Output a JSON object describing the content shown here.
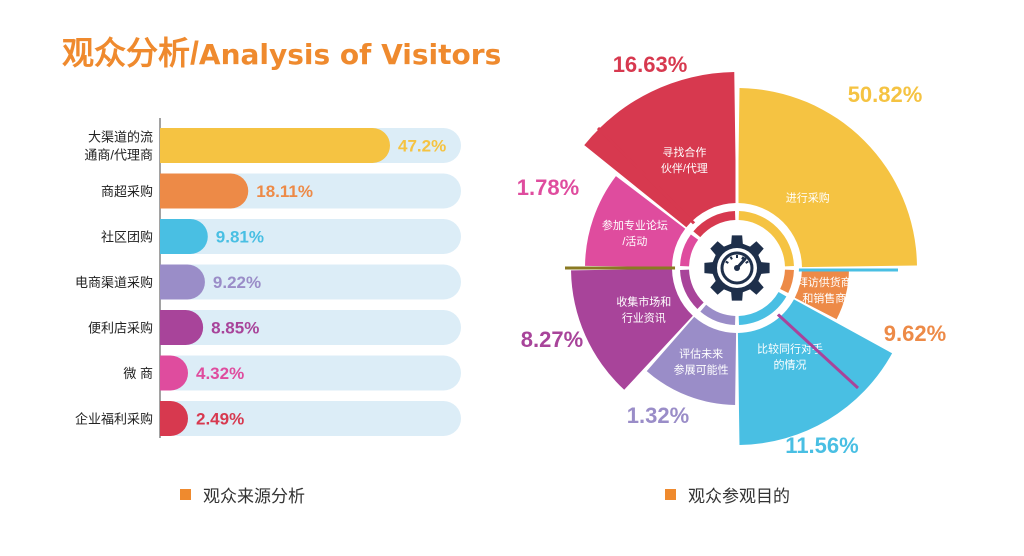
{
  "title": {
    "cn": "观众分析",
    "sep": "/",
    "en": "Analysis of Visitors"
  },
  "colors": {
    "accent": "#ef8a2e",
    "track": "#dcedf7"
  },
  "chart_data": [
    {
      "type": "bar",
      "orientation": "horizontal",
      "legend": "观众来源分析",
      "categories": [
        "大渠道的流通商/代理商",
        "商超采购",
        "社区团购",
        "电商渠道采购",
        "便利店采购",
        "微 商",
        "企业福利采购"
      ],
      "category_lines": [
        [
          "大渠道的流",
          "通商/代理商"
        ],
        [
          "商超采购"
        ],
        [
          "社区团购"
        ],
        [
          "电商渠道采购"
        ],
        [
          "便利店采购"
        ],
        [
          "微 商"
        ],
        [
          "企业福利采购"
        ]
      ],
      "values": [
        47.2,
        18.11,
        9.81,
        9.22,
        8.85,
        4.32,
        2.49
      ],
      "value_labels": [
        "47.2%",
        "18.11%",
        "9.81%",
        "9.22%",
        "8.85%",
        "4.32%",
        "2.49%"
      ],
      "colors": [
        "#f5c342",
        "#ed8a47",
        "#49bfe3",
        "#9a8dc8",
        "#a8449a",
        "#df4c9e",
        "#d7394f"
      ],
      "label_colors": [
        "#f5c342",
        "#ed8a47",
        "#49bfe3",
        "#9a8dc8",
        "#a8449a",
        "#df4c9e",
        "#d7394f"
      ],
      "xlim": [
        0,
        50
      ]
    },
    {
      "type": "pie",
      "style": "rose",
      "legend": "观众参观目的",
      "slices": [
        {
          "lines": [
            "进行采购"
          ],
          "value": 50.82,
          "label": "50.82%",
          "color": "#f5c342",
          "label_color": "#f5c342"
        },
        {
          "lines": [
            "拜访供货商",
            "和销售商"
          ],
          "value": 9.62,
          "label": "9.62%",
          "color": "#ed8a47",
          "label_color": "#ed8a47"
        },
        {
          "lines": [
            "比较同行对手",
            "的情况"
          ],
          "value": 11.56,
          "label": "11.56%",
          "color": "#49bfe3",
          "label_color": "#49bfe3"
        },
        {
          "lines": [
            "评估未来",
            "参展可能性"
          ],
          "value": 1.32,
          "label": "1.32%",
          "color": "#9a8dc8",
          "label_color": "#9a8dc8"
        },
        {
          "lines": [
            "收集市场和",
            "行业资讯"
          ],
          "value": 8.27,
          "label": "8.27%",
          "color": "#a8449a",
          "label_color": "#a8449a"
        },
        {
          "lines": [
            "参加专业论坛",
            "/活动"
          ],
          "value": 1.78,
          "label": "1.78%",
          "color": "#df4c9e",
          "label_color": "#df4c9e"
        },
        {
          "lines": [
            "寻找合作",
            "伙伴/代理"
          ],
          "value": 16.63,
          "label": "16.63%",
          "color": "#d7394f",
          "label_color": "#d7394f"
        }
      ],
      "center_icon": "gear-gauge-icon"
    }
  ]
}
